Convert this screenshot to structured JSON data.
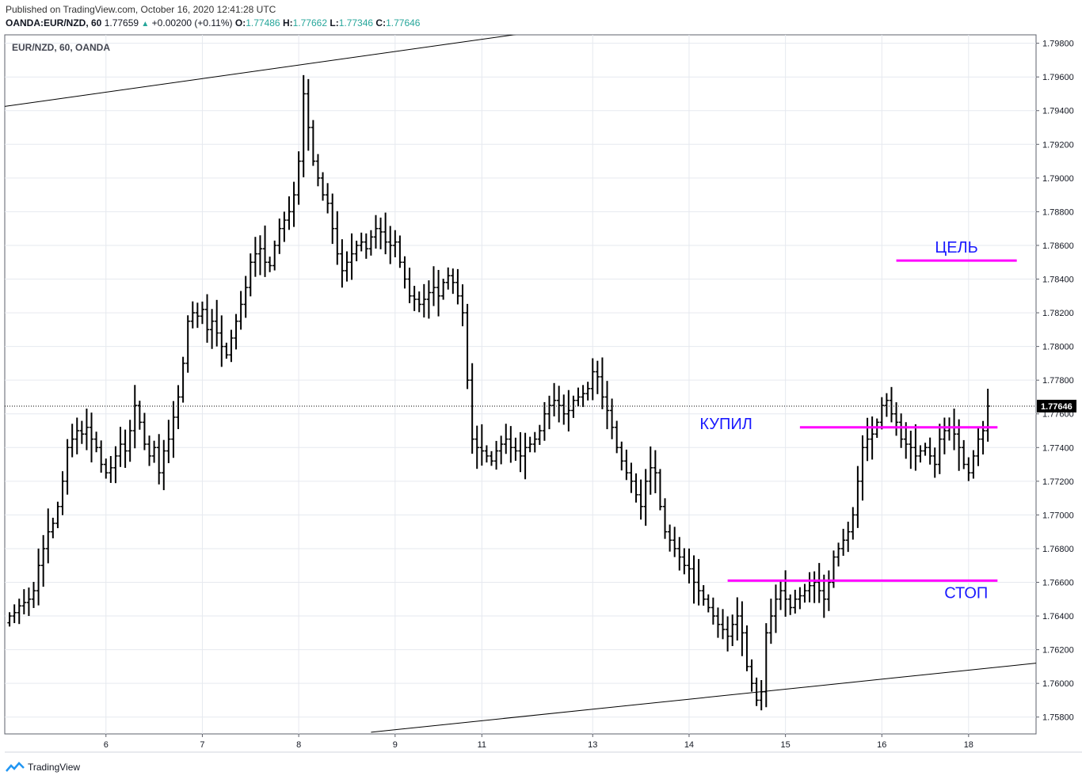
{
  "header": {
    "published": "Published on TradingView.com, October 16, 2020 12:41:28 UTC",
    "symbol_line": "OANDA:EUR/NZD, 60",
    "last": "1.77659",
    "change": "+0.00200 (+0.11%)",
    "o_label": "O:",
    "o": "1.77486",
    "h_label": "H:",
    "h": "1.77662",
    "l_label": "L:",
    "l": "1.77346",
    "c_label": "C:",
    "c": "1.77646"
  },
  "chart_title": "EUR/NZD, 60, OANDA",
  "footer": {
    "brand": "TradingView"
  },
  "chart_data": {
    "type": "ohlc",
    "instrument": "EUR/NZD",
    "timeframe": "60",
    "y_range": [
      1.757,
      1.7985
    ],
    "y_ticks": [
      1.758,
      1.76,
      1.762,
      1.764,
      1.766,
      1.768,
      1.77,
      1.772,
      1.774,
      1.776,
      1.778,
      1.78,
      1.782,
      1.784,
      1.786,
      1.788,
      1.79,
      1.792,
      1.794,
      1.796,
      1.798
    ],
    "x_ticks": [
      {
        "label": "6",
        "i": 20
      },
      {
        "label": "7",
        "i": 40
      },
      {
        "label": "8",
        "i": 60
      },
      {
        "label": "9",
        "i": 80
      },
      {
        "label": "11",
        "i": 98
      },
      {
        "label": "13",
        "i": 121
      },
      {
        "label": "14",
        "i": 141
      },
      {
        "label": "15",
        "i": 161
      },
      {
        "label": "16",
        "i": 181
      },
      {
        "label": "18",
        "i": 199
      }
    ],
    "x_index_range": [
      -1,
      213
    ],
    "last_price": 1.77646,
    "last_price_label": "1.77646",
    "grid": true,
    "closes": [
      1.764,
      1.7642,
      1.7646,
      1.7648,
      1.765,
      1.7655,
      1.767,
      1.768,
      1.769,
      1.7695,
      1.7705,
      1.772,
      1.774,
      1.7745,
      1.775,
      1.7748,
      1.7752,
      1.7745,
      1.774,
      1.773,
      1.7725,
      1.7728,
      1.7735,
      1.7742,
      1.7738,
      1.775,
      1.7765,
      1.7755,
      1.7742,
      1.7735,
      1.774,
      1.7725,
      1.7738,
      1.7745,
      1.7758,
      1.777,
      1.779,
      1.7815,
      1.782,
      1.7818,
      1.7822,
      1.781,
      1.7815,
      1.7808,
      1.78,
      1.7795,
      1.7805,
      1.7815,
      1.7825,
      1.7835,
      1.785,
      1.7855,
      1.7858,
      1.785,
      1.7848,
      1.786,
      1.787,
      1.7875,
      1.788,
      1.789,
      1.791,
      1.795,
      1.793,
      1.791,
      1.79,
      1.789,
      1.7885,
      1.787,
      1.7855,
      1.7845,
      1.785,
      1.7855,
      1.786,
      1.7862,
      1.7858,
      1.7865,
      1.787,
      1.7868,
      1.7862,
      1.786,
      1.7862,
      1.785,
      1.784,
      1.783,
      1.7828,
      1.7825,
      1.7828,
      1.7832,
      1.7835,
      1.783,
      1.7838,
      1.7842,
      1.7838,
      1.783,
      1.782,
      1.778,
      1.7745,
      1.774,
      1.7738,
      1.7735,
      1.7732,
      1.7738,
      1.7742,
      1.7745,
      1.774,
      1.7738,
      1.7735,
      1.774,
      1.7742,
      1.7745,
      1.775,
      1.776,
      1.7765,
      1.7768,
      1.7765,
      1.776,
      1.7762,
      1.7768,
      1.777,
      1.7772,
      1.7775,
      1.7785,
      1.7782,
      1.777,
      1.7762,
      1.7752,
      1.774,
      1.7732,
      1.7725,
      1.772,
      1.7712,
      1.7705,
      1.772,
      1.7728,
      1.7725,
      1.7705,
      1.769,
      1.7685,
      1.768,
      1.7675,
      1.767,
      1.7668,
      1.766,
      1.7655,
      1.765,
      1.7645,
      1.764,
      1.7635,
      1.7632,
      1.7628,
      1.7635,
      1.764,
      1.763,
      1.761,
      1.76,
      1.759,
      1.7595,
      1.763,
      1.764,
      1.765,
      1.7655,
      1.765,
      1.7645,
      1.765,
      1.7652,
      1.7655,
      1.7658,
      1.766,
      1.7655,
      1.765,
      1.766,
      1.7675,
      1.768,
      1.7685,
      1.769,
      1.77,
      1.772,
      1.774,
      1.7745,
      1.7748,
      1.7755,
      1.7765,
      1.7768,
      1.776,
      1.7755,
      1.7745,
      1.7742,
      1.774,
      1.7735,
      1.7738,
      1.774,
      1.7735,
      1.773,
      1.7745,
      1.775,
      1.7752,
      1.7748,
      1.774,
      1.773,
      1.7725,
      1.7735,
      1.7745,
      1.775,
      1.77646
    ],
    "trendlines": [
      {
        "from": {
          "i": -1,
          "price": 1.79425
        },
        "to": {
          "i": 112,
          "price": 1.7988
        }
      },
      {
        "from": {
          "i": 75,
          "price": 1.7571
        },
        "to": {
          "i": 213,
          "price": 1.7612
        }
      }
    ],
    "levels": [
      {
        "name": "target",
        "price": 1.7851,
        "from_i": 184,
        "to_i": 209,
        "color": "#ff00ff",
        "label": "ЦЕЛЬ"
      },
      {
        "name": "entry",
        "price": 1.7752,
        "from_i": 164,
        "to_i": 205,
        "color": "#ff00ff",
        "label": "КУПИЛ"
      },
      {
        "name": "stop",
        "price": 1.7661,
        "from_i": 149,
        "to_i": 205,
        "color": "#ff00ff",
        "label": "СТОП"
      }
    ],
    "colors": {
      "bars": "#000000",
      "levels": "#ff00ff",
      "label_text": "#1a1aff",
      "grid": "#e6e9ef",
      "last_price_bg": "#000000"
    }
  }
}
